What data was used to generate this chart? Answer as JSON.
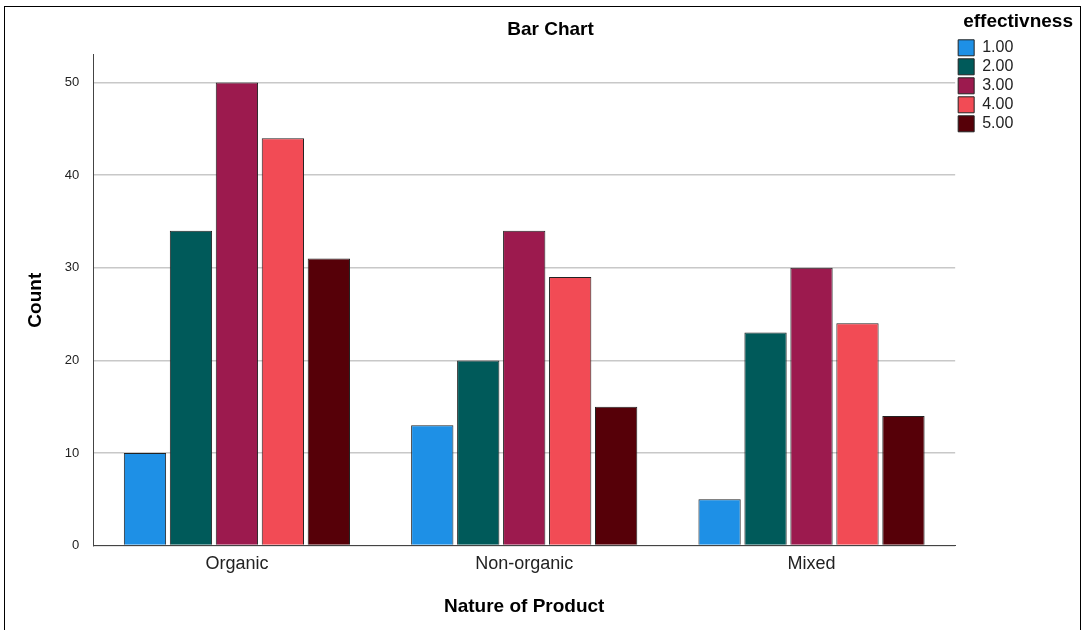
{
  "chart_data": {
    "type": "bar",
    "title": "Bar Chart",
    "xlabel": "Nature of Product",
    "ylabel": "Count",
    "legend_title": "effectivness",
    "categories": [
      "Organic",
      "Non-organic",
      "Mixed"
    ],
    "series": [
      {
        "name": "1.00",
        "color": "#1e90e6",
        "values": [
          10,
          13,
          5
        ]
      },
      {
        "name": "2.00",
        "color": "#005a5a",
        "values": [
          34,
          20,
          23
        ]
      },
      {
        "name": "3.00",
        "color": "#9c1a4e",
        "values": [
          50,
          34,
          30
        ]
      },
      {
        "name": "4.00",
        "color": "#f24b55",
        "values": [
          44,
          29,
          24
        ]
      },
      {
        "name": "5.00",
        "color": "#560008",
        "values": [
          31,
          15,
          14
        ]
      }
    ],
    "ylim": [
      0,
      53
    ],
    "yticks": [
      0,
      10,
      20,
      30,
      40,
      50
    ],
    "grid": "y",
    "legend": "top right"
  }
}
